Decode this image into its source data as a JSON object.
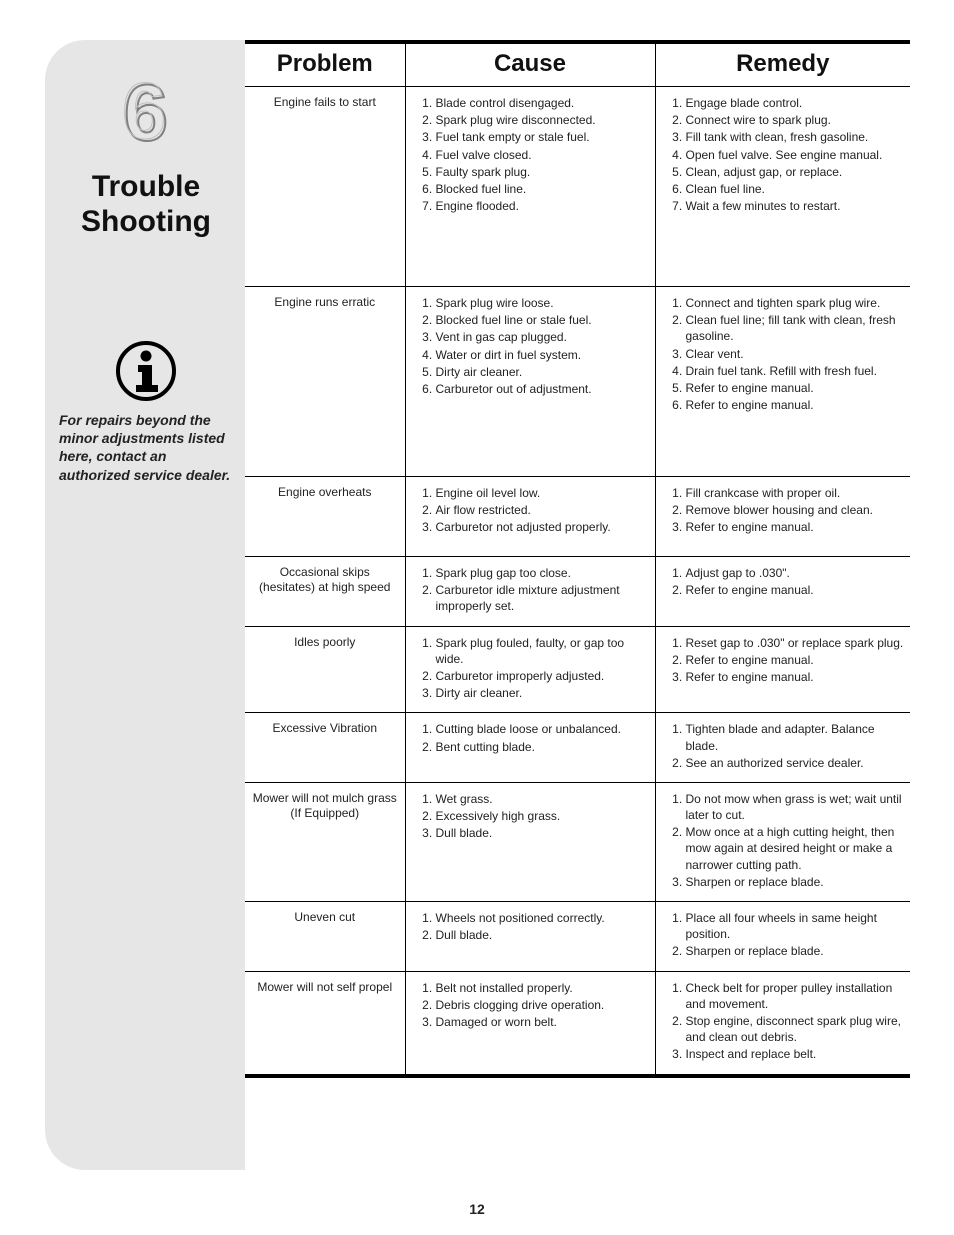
{
  "sidebar": {
    "chapter_number_glyph": "6",
    "chapter_title": "Trouble\nShooting",
    "info_note": "For repairs beyond the minor adjustments listed here, contact an authorized service dealer."
  },
  "table": {
    "headers": {
      "problem": "Problem",
      "cause": "Cause",
      "remedy": "Remedy"
    },
    "rows": [
      {
        "problem": "Engine fails to start",
        "cause": [
          "Blade control disengaged.",
          "Spark plug wire disconnected.",
          "Fuel tank empty or stale fuel.",
          "Fuel valve closed.",
          "Faulty spark plug.",
          "Blocked fuel line.",
          "Engine flooded."
        ],
        "remedy": [
          "Engage blade control.",
          "Connect wire to spark plug.",
          "Fill tank with clean, fresh gasoline.",
          "Open fuel valve. See engine manual.",
          "Clean, adjust gap, or replace.",
          "Clean fuel line.",
          "Wait a few minutes to restart."
        ],
        "min_height": 200
      },
      {
        "problem": "Engine runs erratic",
        "cause": [
          "Spark plug wire loose.",
          "Blocked fuel line or stale fuel.",
          "Vent in gas cap plugged.",
          "Water or dirt in fuel system.",
          "Dirty air cleaner.",
          "Carburetor out of adjustment."
        ],
        "remedy": [
          "Connect and tighten spark plug wire.",
          "Clean fuel line; fill tank with clean, fresh gasoline.",
          "Clear vent.",
          "Drain fuel tank. Refill with fresh fuel.",
          "Refer to engine manual.",
          "Refer to engine manual."
        ],
        "min_height": 190
      },
      {
        "problem": "Engine overheats",
        "cause": [
          "Engine oil level low.",
          "Air flow restricted.",
          "Carburetor not adjusted properly."
        ],
        "remedy": [
          "Fill crankcase with proper oil.",
          "Remove blower housing and clean.",
          "Refer to engine manual."
        ],
        "min_height": 80
      },
      {
        "problem": "Occasional skips (hesitates) at high speed",
        "cause": [
          "Spark plug gap too close.",
          "Carburetor idle mixture adjustment improperly set."
        ],
        "remedy": [
          "Adjust gap to .030\".",
          "Refer to engine manual."
        ],
        "min_height": 60
      },
      {
        "problem": "Idles poorly",
        "cause": [
          "Spark plug fouled, faulty, or gap too wide.",
          "Carburetor improperly adjusted.",
          "Dirty air cleaner."
        ],
        "remedy": [
          "Reset gap to .030\" or replace spark plug.",
          "Refer to engine manual.",
          "Refer to engine manual."
        ],
        "min_height": 70
      },
      {
        "problem": "Excessive Vibration",
        "cause": [
          "Cutting blade loose or unbalanced.",
          "Bent cutting blade."
        ],
        "remedy": [
          "Tighten blade and adapter. Balance blade.",
          "See an authorized service dealer."
        ],
        "min_height": 60
      },
      {
        "problem": "Mower will not mulch grass (If Equipped)",
        "cause": [
          "Wet grass.",
          "Excessively high grass.",
          "Dull blade."
        ],
        "remedy": [
          "Do not mow when grass is wet; wait until later to cut.",
          "Mow once at a high cutting height, then mow again at desired height or make a narrower cutting path.",
          "Sharpen or replace blade."
        ],
        "min_height": 105
      },
      {
        "problem": "Uneven cut",
        "cause": [
          "Wheels not positioned correctly.",
          "Dull blade."
        ],
        "remedy": [
          "Place all four wheels in same height position.",
          "Sharpen or replace blade."
        ],
        "min_height": 55
      },
      {
        "problem": "Mower will not self propel",
        "cause": [
          "Belt not installed properly.",
          "Debris clogging drive operation.",
          "Damaged or worn belt."
        ],
        "remedy": [
          "Check belt for proper pulley installation and movement.",
          "Stop engine, disconnect spark plug wire, and clean out debris.",
          "Inspect and replace belt."
        ],
        "min_height": 95
      }
    ]
  },
  "page_number": "12",
  "style": {
    "bg_sidebar": "#e6e6e6",
    "border_color": "#000000",
    "header_fontsize": 24,
    "title_fontsize": 30,
    "body_fontsize": 12,
    "problem_fontsize": 14.5
  }
}
